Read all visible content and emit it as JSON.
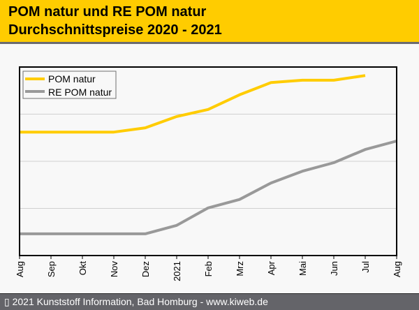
{
  "header": {
    "title_line1": "POM natur und RE POM natur",
    "title_line2": "Durchschnittspreise 2020 - 2021"
  },
  "footer": {
    "copyright": "▯ 2021 Kunststoff Information, Bad Homburg - www.kiweb.de"
  },
  "colors": {
    "title_bg": "#ffcc00",
    "footer_bg": "#646469",
    "pom_natur": "#ffcc00",
    "re_pom_natur": "#999999",
    "gridline": "#d0d0d0"
  },
  "chart_data": {
    "type": "line",
    "title": "POM natur und RE POM natur Durchschnittspreise 2020 - 2021",
    "xlabel": "",
    "ylabel": "",
    "y_tick_labels_shown": false,
    "y_units_note": "relative units (no y-axis labels shown); 0 = axis bottom, each gridline = 1",
    "ylim": [
      0,
      4
    ],
    "grid": true,
    "legend_position": "top-left",
    "categories": [
      "Aug",
      "Sep",
      "Okt",
      "Nov",
      "Dez",
      "2021",
      "Feb",
      "Mrz",
      "Apr",
      "Mai",
      "Jun",
      "Jul",
      "Aug"
    ],
    "series": [
      {
        "name": "POM natur",
        "color": "#ffcc00",
        "values": [
          2.62,
          2.62,
          2.62,
          2.62,
          2.71,
          2.95,
          3.1,
          3.41,
          3.67,
          3.72,
          3.72,
          3.82,
          null
        ]
      },
      {
        "name": "RE POM natur",
        "color": "#999999",
        "values": [
          0.46,
          0.46,
          0.46,
          0.46,
          0.46,
          0.64,
          1.01,
          1.19,
          1.54,
          1.79,
          1.97,
          2.25,
          2.43
        ]
      }
    ]
  }
}
